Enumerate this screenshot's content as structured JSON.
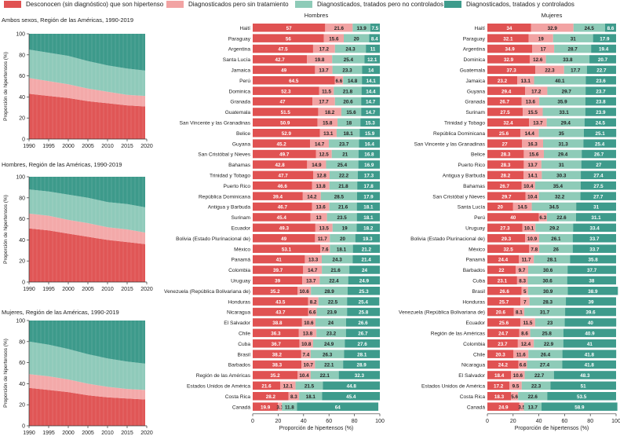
{
  "legend": {
    "items": [
      {
        "label": "Desconocen (sin diagnóstico) que son hipertenso",
        "color": "#E05252"
      },
      {
        "label": "Diagnosticados pero sin tratamiento",
        "color": "#F2A3A3"
      },
      {
        "label": "Diagnosticados, tratados pero no controlados",
        "color": "#8ECBB8"
      },
      {
        "label": "Diagnosticados, tratados y controlados",
        "color": "#3E9B8C"
      }
    ]
  },
  "colors": {
    "undiagnosed": "#E05252",
    "untreated": "#F2A3A3",
    "uncontrolled": "#8ECBB8",
    "controlled": "#3E9B8C",
    "area_undiagnosed": "#E05656",
    "area_untreated": "#F3A9A9",
    "area_uncontrolled": "#8FCABA",
    "area_controlled": "#3D9A8B"
  },
  "chart_data": [
    {
      "type": "area",
      "title": "Ambos sexos, Región de las Américas, 1990-2019",
      "ylabel": "Proporción de hipertensos (%)",
      "xlabel": "",
      "xlim": [
        1990,
        2020
      ],
      "ylim": [
        0,
        100
      ],
      "xticks": [
        1990,
        1995,
        2000,
        2005,
        2010,
        2015,
        2020
      ],
      "yticks": [
        0,
        20,
        40,
        60,
        80,
        100
      ],
      "x": [
        1990,
        1995,
        2000,
        2005,
        2010,
        2015,
        2019
      ],
      "series": [
        {
          "name": "Desconocen (sin diagnóstico) que son hipertenso",
          "values": [
            43,
            41,
            39,
            36,
            34,
            32,
            31
          ]
        },
        {
          "name": "Diagnosticados pero sin tratamiento",
          "values": [
            15,
            14,
            13,
            12,
            11,
            10,
            10
          ]
        },
        {
          "name": "Diagnosticados, tratados pero no controlados",
          "values": [
            27,
            27,
            27,
            26,
            25,
            25,
            24
          ]
        },
        {
          "name": "Diagnosticados, tratados y controlados",
          "values": [
            15,
            18,
            21,
            26,
            30,
            33,
            35
          ]
        }
      ]
    },
    {
      "type": "area",
      "title": "Hombres, Región de las  Américas, 1990-2019",
      "ylabel": "Proporción de hipertensos (%)",
      "xlabel": "",
      "xlim": [
        1990,
        2020
      ],
      "ylim": [
        0,
        100
      ],
      "xticks": [
        1990,
        1995,
        2000,
        2005,
        2010,
        2015,
        2020
      ],
      "yticks": [
        0,
        20,
        40,
        60,
        80,
        100
      ],
      "x": [
        1990,
        1995,
        2000,
        2005,
        2010,
        2015,
        2019
      ],
      "series": [
        {
          "name": "Desconocen (sin diagnóstico) que son hipertenso",
          "values": [
            51,
            49,
            46,
            43,
            40,
            38,
            36
          ]
        },
        {
          "name": "Diagnosticados pero sin tratamiento",
          "values": [
            14,
            14,
            13,
            13,
            12,
            12,
            11
          ]
        },
        {
          "name": "Diagnosticados, tratados pero no controlados",
          "values": [
            23,
            23,
            24,
            24,
            24,
            24,
            24
          ]
        },
        {
          "name": "Diagnosticados, tratados y controlados",
          "values": [
            12,
            14,
            17,
            20,
            24,
            26,
            29
          ]
        }
      ]
    },
    {
      "type": "area",
      "title": "Mujeres, Región de las  Américas, 1990-2019",
      "ylabel": "Proporción de hipertensos (%)",
      "xlabel": "",
      "xlim": [
        1990,
        2020
      ],
      "ylim": [
        0,
        100
      ],
      "xticks": [
        1990,
        1995,
        2000,
        2005,
        2010,
        2015,
        2020
      ],
      "yticks": [
        0,
        20,
        40,
        60,
        80,
        100
      ],
      "x": [
        1990,
        1995,
        2000,
        2005,
        2010,
        2015,
        2019
      ],
      "series": [
        {
          "name": "Desconocen (sin diagnóstico) que son hipertenso",
          "values": [
            36,
            34,
            32,
            29,
            27,
            26,
            25
          ]
        },
        {
          "name": "Diagnosticados pero sin tratamiento",
          "values": [
            13,
            13,
            12,
            11,
            10,
            9,
            9
          ]
        },
        {
          "name": "Diagnosticados, tratados pero no controlados",
          "values": [
            31,
            30,
            29,
            28,
            27,
            26,
            25
          ]
        },
        {
          "name": "Diagnosticados, tratados y controlados",
          "values": [
            20,
            23,
            27,
            32,
            36,
            39,
            41
          ]
        }
      ]
    },
    {
      "type": "bar",
      "orientation": "horizontal",
      "stacked": true,
      "title": "Hombres",
      "xlabel": "Proporción de hipertensos (%)",
      "xlim": [
        0,
        100
      ],
      "xticks": [
        0,
        20,
        40,
        60,
        80,
        100
      ],
      "categories": [
        "Haití",
        "Paraguay",
        "Argentina",
        "Santa Lucía",
        "Jamaica",
        "Perú",
        "Dominica",
        "Granada",
        "Guatemala",
        "San Vincente y las Granadinas",
        "Belice",
        "Guyana",
        "San Cristóbal y Nieves",
        "Bahamas",
        "Trinidad y Tobago",
        "Puerto Rico",
        "República Dominicana",
        "Antigua y Barbuda",
        "Surinam",
        "Ecuador",
        "Bolivia (Estado Plurinacional de)",
        "México",
        "Panamá",
        "Colombia",
        "Uruguay",
        "Venezuela (República Bolivariana de)",
        "Honduras",
        "Nicaragua",
        "El Salvador",
        "Chile",
        "Cuba",
        "Brasil",
        "Barbados",
        "Región de las Américas",
        "Estados Unidos de América",
        "Costa Rica",
        "Canadá"
      ],
      "series": [
        {
          "name": "Desconocen (sin diagnóstico) que son hipertenso",
          "values": [
            57.0,
            56.0,
            47.5,
            42.7,
            49.0,
            64.5,
            52.3,
            47.0,
            51.5,
            50.9,
            52.9,
            45.2,
            49.7,
            42.8,
            47.7,
            46.6,
            39.4,
            46.7,
            45.4,
            49.3,
            49.0,
            53.1,
            41.0,
            39.7,
            39.0,
            35.2,
            43.5,
            43.7,
            38.8,
            36.3,
            36.7,
            38.2,
            38.3,
            35.2,
            21.6,
            28.2,
            19.9
          ]
        },
        {
          "name": "Diagnosticados pero sin tratamiento",
          "values": [
            21.6,
            15.6,
            17.2,
            19.8,
            13.7,
            6.6,
            11.5,
            17.7,
            18.2,
            15.8,
            13.1,
            14.7,
            12.5,
            14.9,
            12.8,
            13.8,
            14.2,
            13.6,
            13.0,
            13.5,
            11.7,
            7.6,
            13.3,
            14.7,
            13.7,
            10.6,
            8.2,
            6.6,
            10.6,
            13.8,
            10.8,
            7.4,
            10.7,
            10.4,
            12.1,
            8.3,
            3.1
          ]
        },
        {
          "name": "Diagnosticados, tratados pero no controlados",
          "values": [
            13.9,
            20.0,
            24.3,
            25.4,
            23.3,
            14.8,
            21.8,
            20.6,
            15.6,
            18.0,
            18.1,
            23.7,
            21.0,
            25.4,
            22.2,
            21.8,
            28.5,
            21.6,
            23.5,
            19.0,
            20.0,
            18.1,
            24.3,
            21.6,
            22.4,
            28.9,
            22.5,
            23.9,
            24.0,
            23.2,
            24.9,
            26.3,
            22.1,
            22.1,
            21.5,
            18.1,
            11.8
          ]
        },
        {
          "name": "Diagnosticados, tratados y controlados",
          "values": [
            7.5,
            8.4,
            11.0,
            12.1,
            14.0,
            14.1,
            14.4,
            14.7,
            14.7,
            15.3,
            15.9,
            16.4,
            16.8,
            16.9,
            17.3,
            17.8,
            17.9,
            18.1,
            18.1,
            18.2,
            19.3,
            21.2,
            21.4,
            24.0,
            24.9,
            25.3,
            25.4,
            25.8,
            26.6,
            26.7,
            27.6,
            28.1,
            28.9,
            32.3,
            44.8,
            45.4,
            64.0
          ]
        }
      ]
    },
    {
      "type": "bar",
      "orientation": "horizontal",
      "stacked": true,
      "title": "Mujeres",
      "xlabel": "Proporción de hipertensos (%)",
      "xlim": [
        0,
        100
      ],
      "xticks": [
        0,
        20,
        40,
        60,
        80,
        100
      ],
      "categories": [
        "Haití",
        "Paraguay",
        "Argentina",
        "Dominica",
        "Guatemala",
        "Jamaica",
        "Guyana",
        "Granada",
        "Surinam",
        "Trinidad y Tobago",
        "República Dominicana",
        "San Vincente y las Granadinas",
        "Belice",
        "Puerto Rico",
        "Antigua y Barbuda",
        "Bahamas",
        "San Cristóbal y Nieves",
        "Santa Lucía",
        "Perú",
        "Uruguay",
        "Bolivia (Estado Plurinacional de)",
        "México",
        "Panamá",
        "Barbados",
        "Cuba",
        "Brasil",
        "Honduras",
        "Venezuela (República Bolivariana de)",
        "Ecuador",
        "Región de las Américas",
        "Colombia",
        "Chile",
        "Nicaragua",
        "El Salvador",
        "Estados Unidos de América",
        "Costa Rica",
        "Canadá"
      ],
      "series": [
        {
          "name": "Desconocen (sin diagnóstico) que son hipertenso",
          "values": [
            34.0,
            32.1,
            34.9,
            32.9,
            37.3,
            23.2,
            29.4,
            26.7,
            27.5,
            32.4,
            25.6,
            27.0,
            28.3,
            28.3,
            28.2,
            26.7,
            29.7,
            20.0,
            40.0,
            27.3,
            29.3,
            32.5,
            24.4,
            22.0,
            23.1,
            26.6,
            25.7,
            20.6,
            25.6,
            24.7,
            23.7,
            20.3,
            24.2,
            18.4,
            17.2,
            18.3,
            24.9
          ]
        },
        {
          "name": "Diagnosticados pero sin tratamiento",
          "values": [
            32.9,
            19.0,
            17.0,
            12.6,
            22.3,
            13.1,
            17.2,
            13.6,
            15.5,
            13.7,
            14.4,
            16.3,
            15.6,
            13.7,
            14.1,
            10.4,
            10.4,
            14.5,
            6.3,
            10.1,
            10.9,
            7.8,
            11.7,
            9.7,
            8.3,
            5.0,
            7.0,
            8.1,
            11.5,
            8.6,
            12.4,
            11.6,
            6.6,
            10.6,
            9.5,
            5.6,
            3.5
          ]
        },
        {
          "name": "Diagnosticados, tratados pero no controlados",
          "values": [
            24.5,
            31.0,
            28.7,
            33.8,
            17.7,
            40.1,
            29.7,
            35.9,
            33.1,
            29.4,
            35.0,
            31.3,
            29.4,
            31.0,
            30.3,
            35.4,
            32.2,
            34.5,
            22.6,
            29.2,
            26.1,
            26.0,
            28.1,
            30.6,
            30.6,
            30.9,
            28.3,
            31.7,
            23.0,
            25.8,
            22.9,
            26.4,
            27.4,
            22.7,
            22.3,
            22.6,
            13.7
          ]
        },
        {
          "name": "Diagnosticados, tratados y controlados",
          "values": [
            8.6,
            17.9,
            19.4,
            20.7,
            22.7,
            23.6,
            23.7,
            23.8,
            23.9,
            24.5,
            25.1,
            25.4,
            26.7,
            27.0,
            27.4,
            27.5,
            27.7,
            31.0,
            31.1,
            33.4,
            33.7,
            33.7,
            35.8,
            37.7,
            38.0,
            38.9,
            39.0,
            39.6,
            40.0,
            40.9,
            41.0,
            41.8,
            41.8,
            48.3,
            51.0,
            53.5,
            58.9
          ]
        }
      ]
    }
  ]
}
